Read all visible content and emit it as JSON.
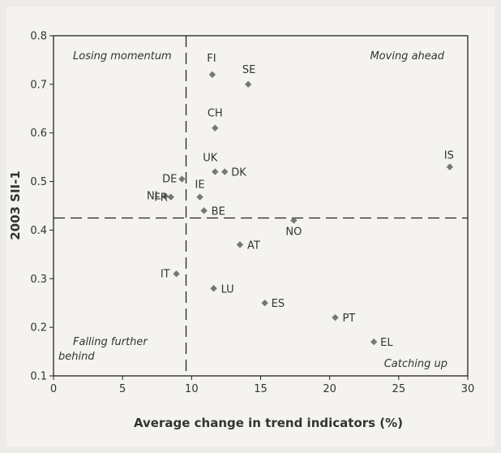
{
  "chart_data": {
    "type": "scatter",
    "xlabel": "Average change in trend indicators (%)",
    "ylabel": "2003 SII-1",
    "xlim": [
      0,
      30
    ],
    "ylim": [
      0.1,
      0.8
    ],
    "x_ticks": [
      "0",
      "5",
      "10",
      "15",
      "20",
      "25",
      "30"
    ],
    "y_ticks": [
      "0.1",
      "0.2",
      "0.3",
      "0.4",
      "0.5",
      "0.6",
      "0.7",
      "0.8"
    ],
    "grid": false,
    "reference_lines": {
      "x": 9.6,
      "y": 0.425
    },
    "quadrant_labels": {
      "top_left": "Losing momentum",
      "top_right": "Moving ahead",
      "bottom_left_line1": "Falling further",
      "bottom_left_line2": "behind",
      "bottom_right": "Catching up"
    },
    "points": [
      {
        "label": "FI",
        "x": 11.5,
        "y": 0.72
      },
      {
        "label": "SE",
        "x": 14.1,
        "y": 0.7
      },
      {
        "label": "CH",
        "x": 11.7,
        "y": 0.61
      },
      {
        "label": "UK",
        "x": 11.7,
        "y": 0.52
      },
      {
        "label": "DK",
        "x": 12.4,
        "y": 0.52
      },
      {
        "label": "DE",
        "x": 9.3,
        "y": 0.505
      },
      {
        "label": "IE",
        "x": 10.6,
        "y": 0.468
      },
      {
        "label": "NL",
        "x": 8.1,
        "y": 0.47
      },
      {
        "label": "FR",
        "x": 8.5,
        "y": 0.468
      },
      {
        "label": "BE",
        "x": 10.9,
        "y": 0.44
      },
      {
        "label": "NO",
        "x": 17.4,
        "y": 0.42
      },
      {
        "label": "IS",
        "x": 28.7,
        "y": 0.53
      },
      {
        "label": "AT",
        "x": 13.5,
        "y": 0.37
      },
      {
        "label": "IT",
        "x": 8.9,
        "y": 0.31
      },
      {
        "label": "LU",
        "x": 11.6,
        "y": 0.28
      },
      {
        "label": "ES",
        "x": 15.3,
        "y": 0.25
      },
      {
        "label": "PT",
        "x": 20.4,
        "y": 0.22
      },
      {
        "label": "EL",
        "x": 23.2,
        "y": 0.17
      }
    ],
    "colors": {
      "marker": "#777777",
      "frame": "#222222"
    }
  }
}
